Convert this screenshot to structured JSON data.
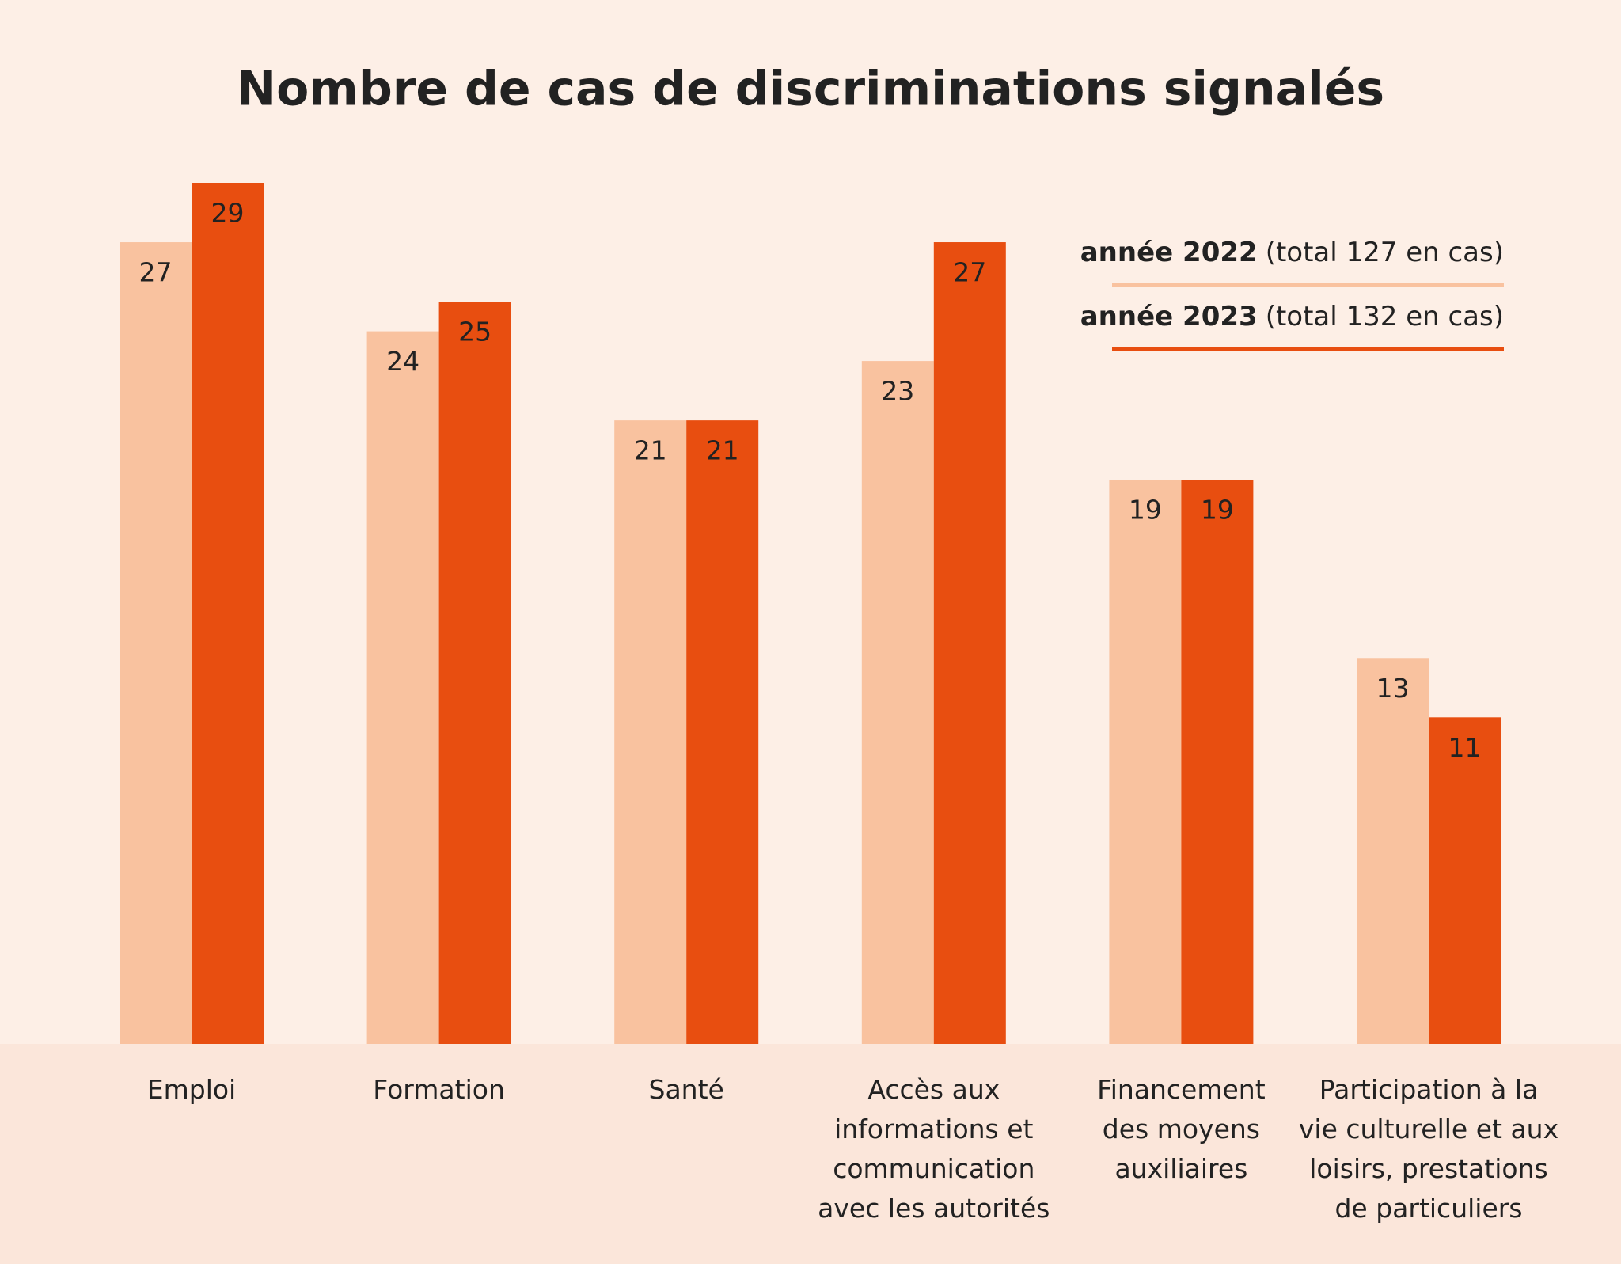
{
  "chart_data": {
    "type": "bar",
    "title": "Nombre de cas de discriminations signalés",
    "categories": [
      "Emploi",
      "Formation",
      "Santé",
      "Accès aux\ninformations et\ncommunication\navec les autorités",
      "Financement\ndes moyens\nauxiliaires",
      "Participation à la\nvie culturelle et aux\nloisirs, prestations\nde particuliers"
    ],
    "series": [
      {
        "name": "année 2022",
        "total_label": "(total 127 en cas)",
        "color": "#f9c29f",
        "values": [
          27,
          24,
          21,
          23,
          19,
          13
        ]
      },
      {
        "name": "année 2023",
        "total_label": "(total 132 en cas)",
        "color": "#e84e10",
        "values": [
          29,
          25,
          21,
          27,
          19,
          11
        ]
      }
    ],
    "ylim": [
      0,
      29
    ]
  }
}
